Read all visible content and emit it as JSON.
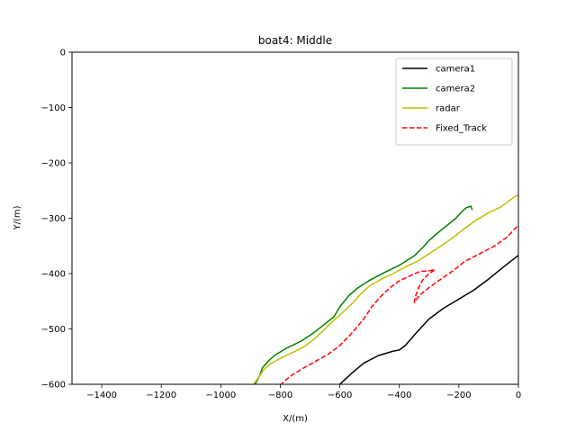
{
  "chart_data": {
    "type": "line",
    "title": "boat4: Middle",
    "xlabel": "X/(m)",
    "ylabel": "Y/(m)",
    "xlim": [
      -1500,
      0
    ],
    "ylim": [
      -600,
      0
    ],
    "x_ticks": [
      -1400,
      -1200,
      -1000,
      -800,
      -600,
      -400,
      -200,
      0
    ],
    "y_ticks": [
      0,
      -100,
      -200,
      -300,
      -400,
      -500,
      -600
    ],
    "x_tick_labels": [
      "−1400",
      "−1200",
      "−1000",
      "−800",
      "−600",
      "−400",
      "−200",
      "0"
    ],
    "y_tick_labels": [
      "0",
      "−100",
      "−200",
      "−300",
      "−400",
      "−500",
      "−600"
    ],
    "grid": false,
    "legend_position": "top-right",
    "series": [
      {
        "name": "camera1",
        "color": "#000000",
        "dash": "solid",
        "points": [
          [
            -600,
            -600
          ],
          [
            -560,
            -580
          ],
          [
            -520,
            -562
          ],
          [
            -470,
            -548
          ],
          [
            -420,
            -540
          ],
          [
            -400,
            -538
          ],
          [
            -380,
            -530
          ],
          [
            -340,
            -505
          ],
          [
            -300,
            -482
          ],
          [
            -250,
            -462
          ],
          [
            -200,
            -446
          ],
          [
            -150,
            -430
          ],
          [
            -100,
            -410
          ],
          [
            -50,
            -388
          ],
          [
            0,
            -367
          ]
        ]
      },
      {
        "name": "camera2",
        "color": "#008000",
        "dash": "solid",
        "points": [
          [
            -885,
            -600
          ],
          [
            -870,
            -585
          ],
          [
            -860,
            -570
          ],
          [
            -840,
            -558
          ],
          [
            -820,
            -548
          ],
          [
            -780,
            -535
          ],
          [
            -730,
            -522
          ],
          [
            -690,
            -508
          ],
          [
            -660,
            -495
          ],
          [
            -620,
            -478
          ],
          [
            -600,
            -460
          ],
          [
            -570,
            -440
          ],
          [
            -540,
            -426
          ],
          [
            -500,
            -412
          ],
          [
            -450,
            -398
          ],
          [
            -400,
            -385
          ],
          [
            -350,
            -368
          ],
          [
            -320,
            -352
          ],
          [
            -300,
            -340
          ],
          [
            -270,
            -326
          ],
          [
            -240,
            -313
          ],
          [
            -210,
            -300
          ],
          [
            -190,
            -288
          ],
          [
            -175,
            -281
          ],
          [
            -160,
            -278
          ],
          [
            -155,
            -285
          ]
        ]
      },
      {
        "name": "radar",
        "color": "#bfbf00",
        "dash": "solid",
        "points": [
          [
            -890,
            -600
          ],
          [
            -870,
            -585
          ],
          [
            -855,
            -573
          ],
          [
            -830,
            -562
          ],
          [
            -800,
            -553
          ],
          [
            -760,
            -543
          ],
          [
            -720,
            -532
          ],
          [
            -690,
            -520
          ],
          [
            -660,
            -505
          ],
          [
            -620,
            -484
          ],
          [
            -590,
            -470
          ],
          [
            -560,
            -455
          ],
          [
            -530,
            -437
          ],
          [
            -500,
            -422
          ],
          [
            -460,
            -410
          ],
          [
            -420,
            -400
          ],
          [
            -380,
            -388
          ],
          [
            -340,
            -378
          ],
          [
            -300,
            -364
          ],
          [
            -260,
            -350
          ],
          [
            -220,
            -335
          ],
          [
            -180,
            -318
          ],
          [
            -140,
            -303
          ],
          [
            -100,
            -290
          ],
          [
            -60,
            -280
          ],
          [
            -30,
            -268
          ],
          [
            -10,
            -260
          ],
          [
            0,
            -259
          ]
        ]
      },
      {
        "name": "Fixed_Track",
        "color": "#ff0000",
        "dash": "dashed",
        "points": [
          [
            -800,
            -603
          ],
          [
            -790,
            -596
          ],
          [
            -760,
            -583
          ],
          [
            -720,
            -570
          ],
          [
            -680,
            -558
          ],
          [
            -640,
            -546
          ],
          [
            -600,
            -530
          ],
          [
            -560,
            -508
          ],
          [
            -520,
            -482
          ],
          [
            -490,
            -458
          ],
          [
            -460,
            -440
          ],
          [
            -430,
            -425
          ],
          [
            -400,
            -413
          ],
          [
            -360,
            -403
          ],
          [
            -330,
            -396
          ],
          [
            -300,
            -395
          ],
          [
            -280,
            -393
          ],
          [
            -300,
            -400
          ],
          [
            -320,
            -410
          ],
          [
            -335,
            -425
          ],
          [
            -345,
            -440
          ],
          [
            -350,
            -452
          ],
          [
            -330,
            -438
          ],
          [
            -300,
            -425
          ],
          [
            -260,
            -410
          ],
          [
            -220,
            -395
          ],
          [
            -180,
            -378
          ],
          [
            -130,
            -364
          ],
          [
            -80,
            -350
          ],
          [
            -40,
            -335
          ],
          [
            -10,
            -318
          ],
          [
            0,
            -313
          ]
        ]
      }
    ]
  }
}
